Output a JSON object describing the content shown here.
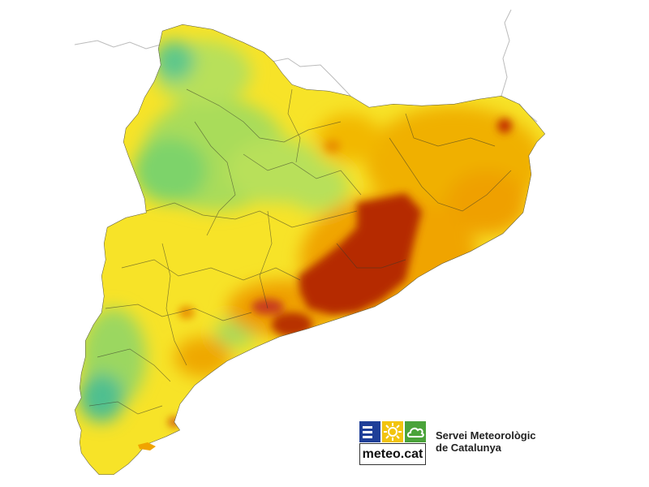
{
  "map": {
    "region": "Catalunya",
    "colors": {
      "dark_red": "#b52a00",
      "red": "#c9401a",
      "orange": "#f0a400",
      "yellow": "#f7e328",
      "light_green": "#b8e05a",
      "green": "#7dd36a",
      "teal": "#3fb99a",
      "border": "#3a3a2a"
    }
  },
  "logo": {
    "wordmark": "meteo.cat",
    "line1": "Servei Meteorològic",
    "line2": "de Catalunya",
    "icons": [
      "stripes-icon",
      "sun-icon",
      "cloud-icon"
    ]
  }
}
